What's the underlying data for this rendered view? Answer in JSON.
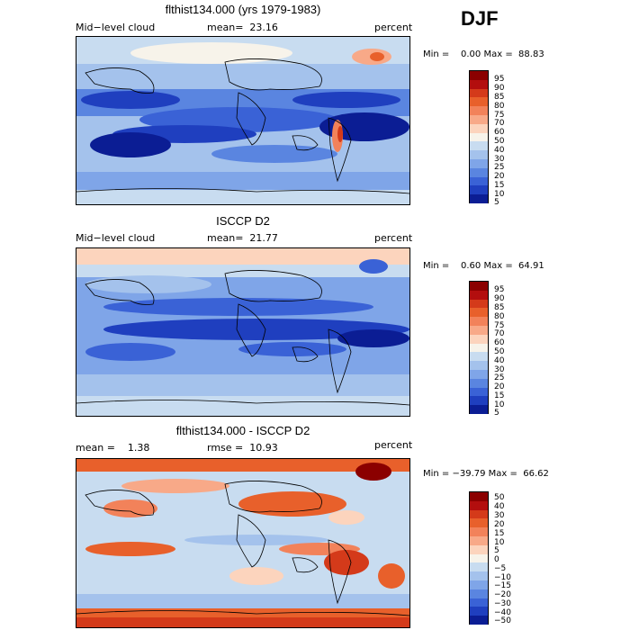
{
  "season": "DJF",
  "panels": [
    {
      "title": "flthist134.000 (yrs 1979-1983)",
      "left_label": "Mid−level cloud",
      "mid_label": "mean=  23.16",
      "right_label": "percent",
      "minmax": "Min =    0.00 Max =  88.83",
      "levels": [
        "95",
        "90",
        "85",
        "80",
        "75",
        "70",
        "60",
        "50",
        "40",
        "30",
        "25",
        "20",
        "15",
        "10",
        "5"
      ],
      "colors": [
        "#8b0000",
        "#b30e0e",
        "#d43a1a",
        "#e8602b",
        "#f2825a",
        "#f8a988",
        "#fcd4bd",
        "#f7f3ea",
        "#c8dcf0",
        "#a4c2ec",
        "#7fa5e8",
        "#5a85e0",
        "#3a62d6",
        "#1f3fbf",
        "#0b1d94"
      ]
    },
    {
      "title": "ISCCP D2",
      "left_label": "Mid−level cloud",
      "mid_label": "mean=  21.77",
      "right_label": "percent",
      "minmax": "Min =    0.60 Max =  64.91",
      "levels": [
        "95",
        "90",
        "85",
        "80",
        "75",
        "70",
        "60",
        "50",
        "40",
        "30",
        "25",
        "20",
        "15",
        "10",
        "5"
      ],
      "colors": [
        "#8b0000",
        "#b30e0e",
        "#d43a1a",
        "#e8602b",
        "#f2825a",
        "#f8a988",
        "#fcd4bd",
        "#f7f3ea",
        "#c8dcf0",
        "#a4c2ec",
        "#7fa5e8",
        "#5a85e0",
        "#3a62d6",
        "#1f3fbf",
        "#0b1d94"
      ]
    },
    {
      "title": "flthist134.000 - ISCCP D2",
      "left_label": "mean =    1.38",
      "mid_label": "rmse =  10.93",
      "right_label": "percent",
      "minmax": "Min = −39.79 Max =  66.62",
      "levels": [
        "50",
        "40",
        "30",
        "20",
        "15",
        "10",
        "5",
        "0",
        "−5",
        "−10",
        "−15",
        "−20",
        "−30",
        "−40",
        "−50"
      ],
      "colors": [
        "#8b0000",
        "#b30e0e",
        "#d43a1a",
        "#e8602b",
        "#f2825a",
        "#f8a988",
        "#fcd4bd",
        "#f7f3ea",
        "#c8dcf0",
        "#a4c2ec",
        "#7fa5e8",
        "#5a85e0",
        "#3a62d6",
        "#1f3fbf",
        "#0b1d94"
      ]
    }
  ]
}
